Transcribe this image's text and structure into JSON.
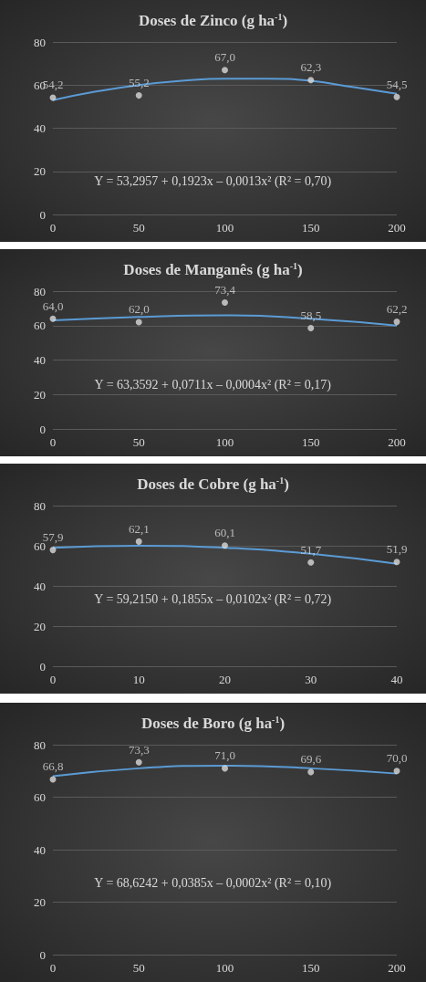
{
  "chart_data": [
    {
      "type": "scatter",
      "title": "Doses de Zinco (g ha$^{-1}$)",
      "x": [
        0,
        50,
        100,
        150,
        200
      ],
      "xlim": [
        0,
        200
      ],
      "xticks": [
        0,
        50,
        100,
        150,
        200
      ],
      "ylim": [
        0,
        80
      ],
      "yticks": [
        0,
        20,
        40,
        60,
        80
      ],
      "grid": "y",
      "annotations": [
        "Y = 53,2957 + 0,1923x – 0,0013x² (R² = 0,70)"
      ],
      "series": [
        {
          "marker": "circle",
          "color": "#d9d9d9",
          "values": [
            54.2,
            55.2,
            67.0,
            62.3,
            54.5
          ],
          "value_labels": [
            "54,2",
            "55,2",
            "67,0",
            "62,3",
            "54,5"
          ]
        },
        {
          "type": "line",
          "marker": "none",
          "color": "#5b9bd5",
          "x": [
            0,
            25,
            50,
            75,
            100,
            125,
            150,
            175,
            200
          ],
          "values": [
            53,
            57,
            60,
            62,
            63,
            63,
            62,
            59,
            56
          ]
        }
      ]
    },
    {
      "type": "scatter",
      "title": "Doses de Manganês (g ha$^{-1}$)",
      "x": [
        0,
        50,
        100,
        150,
        200
      ],
      "xlim": [
        0,
        200
      ],
      "xticks": [
        0,
        50,
        100,
        150,
        200
      ],
      "ylim": [
        0,
        80
      ],
      "yticks": [
        0,
        20,
        40,
        60,
        80
      ],
      "grid": "y",
      "annotations": [
        "Y = 63,3592 + 0,0711x – 0,0004x² (R² = 0,17)"
      ],
      "series": [
        {
          "marker": "circle",
          "color": "#d9d9d9",
          "values": [
            64.0,
            62.0,
            73.4,
            58.5,
            62.2
          ],
          "value_labels": [
            "64,0",
            "62,0",
            "73,4",
            "58,5",
            "62,2"
          ]
        },
        {
          "type": "line",
          "marker": "none",
          "color": "#5b9bd5",
          "x": [
            0,
            50,
            100,
            150,
            200
          ],
          "values": [
            63,
            65,
            66,
            64,
            60
          ]
        }
      ]
    },
    {
      "type": "scatter",
      "title": "Doses de Cobre (g ha$^{-1}$)",
      "x": [
        0,
        10,
        20,
        30,
        40
      ],
      "xlim": [
        0,
        40
      ],
      "xticks": [
        0,
        10,
        20,
        30,
        40
      ],
      "ylim": [
        0,
        80
      ],
      "yticks": [
        0,
        20,
        40,
        60,
        80
      ],
      "grid": "y",
      "annotations": [
        "Y = 59,2150 + 0,1855x – 0,0102x² (R² = 0,72)"
      ],
      "series": [
        {
          "marker": "circle",
          "color": "#d9d9d9",
          "values": [
            57.9,
            62.1,
            60.1,
            51.7,
            51.9
          ],
          "value_labels": [
            "57,9",
            "62,1",
            "60,1",
            "51,7",
            "51,9"
          ]
        },
        {
          "type": "line",
          "marker": "none",
          "color": "#5b9bd5",
          "x": [
            0,
            10,
            20,
            30,
            40
          ],
          "values": [
            59,
            60,
            59,
            56,
            51
          ]
        }
      ]
    },
    {
      "type": "scatter",
      "title": "Doses de Boro (g ha$^{-1}$)",
      "x": [
        0,
        50,
        100,
        150,
        200
      ],
      "xlim": [
        0,
        200
      ],
      "xticks": [
        0,
        50,
        100,
        150,
        200
      ],
      "ylim": [
        0,
        80
      ],
      "yticks": [
        0,
        20,
        40,
        60,
        80
      ],
      "grid": "y",
      "annotations": [
        "Y = 68,6242 + 0,0385x – 0,0002x² (R² = 0,10)"
      ],
      "series": [
        {
          "marker": "circle",
          "color": "#d9d9d9",
          "values": [
            66.8,
            73.3,
            71.0,
            69.6,
            70.0
          ],
          "value_labels": [
            "66,8",
            "73,3",
            "71,0",
            "69,6",
            "70,0"
          ]
        },
        {
          "type": "line",
          "marker": "none",
          "color": "#5b9bd5",
          "x": [
            0,
            50,
            100,
            150,
            200
          ],
          "values": [
            68,
            71,
            72,
            71,
            69
          ]
        }
      ]
    }
  ]
}
